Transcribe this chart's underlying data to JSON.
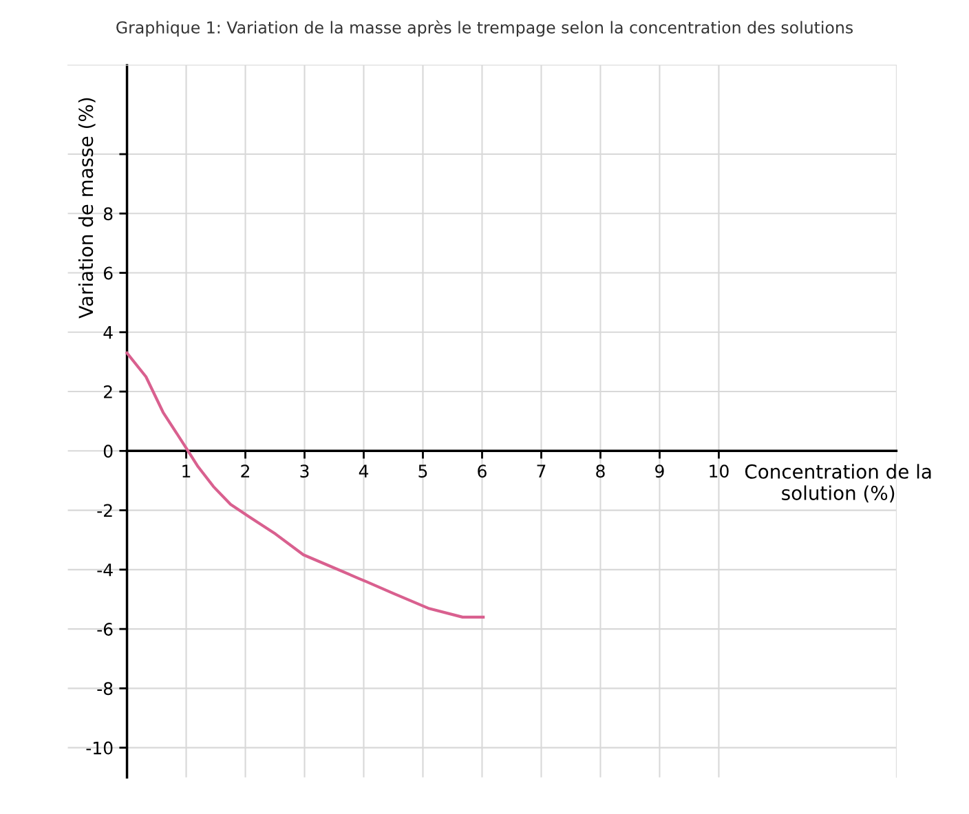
{
  "chart_data": {
    "type": "line",
    "title": "Graphique 1: Variation de la masse après le trempage selon la concentration des solutions",
    "xlabel": "Concentration de la solution (%)",
    "ylabel": "Variation de masse (%)",
    "series": [
      {
        "color": "#d9608f",
        "x": [
          0,
          0.32,
          0.61,
          1.0,
          1.19,
          1.46,
          1.75,
          2.05,
          2.51,
          2.98,
          3.45,
          3.92,
          4.04,
          4.5,
          5.09,
          5.67,
          6.02
        ],
        "values": [
          3.3,
          2.5,
          1.3,
          0.1,
          -0.5,
          -1.2,
          -1.8,
          -2.2,
          -2.8,
          -3.5,
          -3.9,
          -4.3,
          -4.4,
          -4.8,
          -5.3,
          -5.6,
          -5.6
        ]
      }
    ],
    "xlim": [
      -1,
      13
    ],
    "ylim": [
      -11,
      13
    ],
    "xticks": [
      1,
      2,
      3,
      4,
      5,
      6,
      7,
      8,
      9,
      10
    ],
    "yticks": [
      -10,
      -8,
      -6,
      -4,
      -2,
      0,
      2,
      4,
      6,
      8,
      {
        "value": 10,
        "label": null
      }
    ],
    "grid": true,
    "marker": "none",
    "line_style": "solid"
  }
}
